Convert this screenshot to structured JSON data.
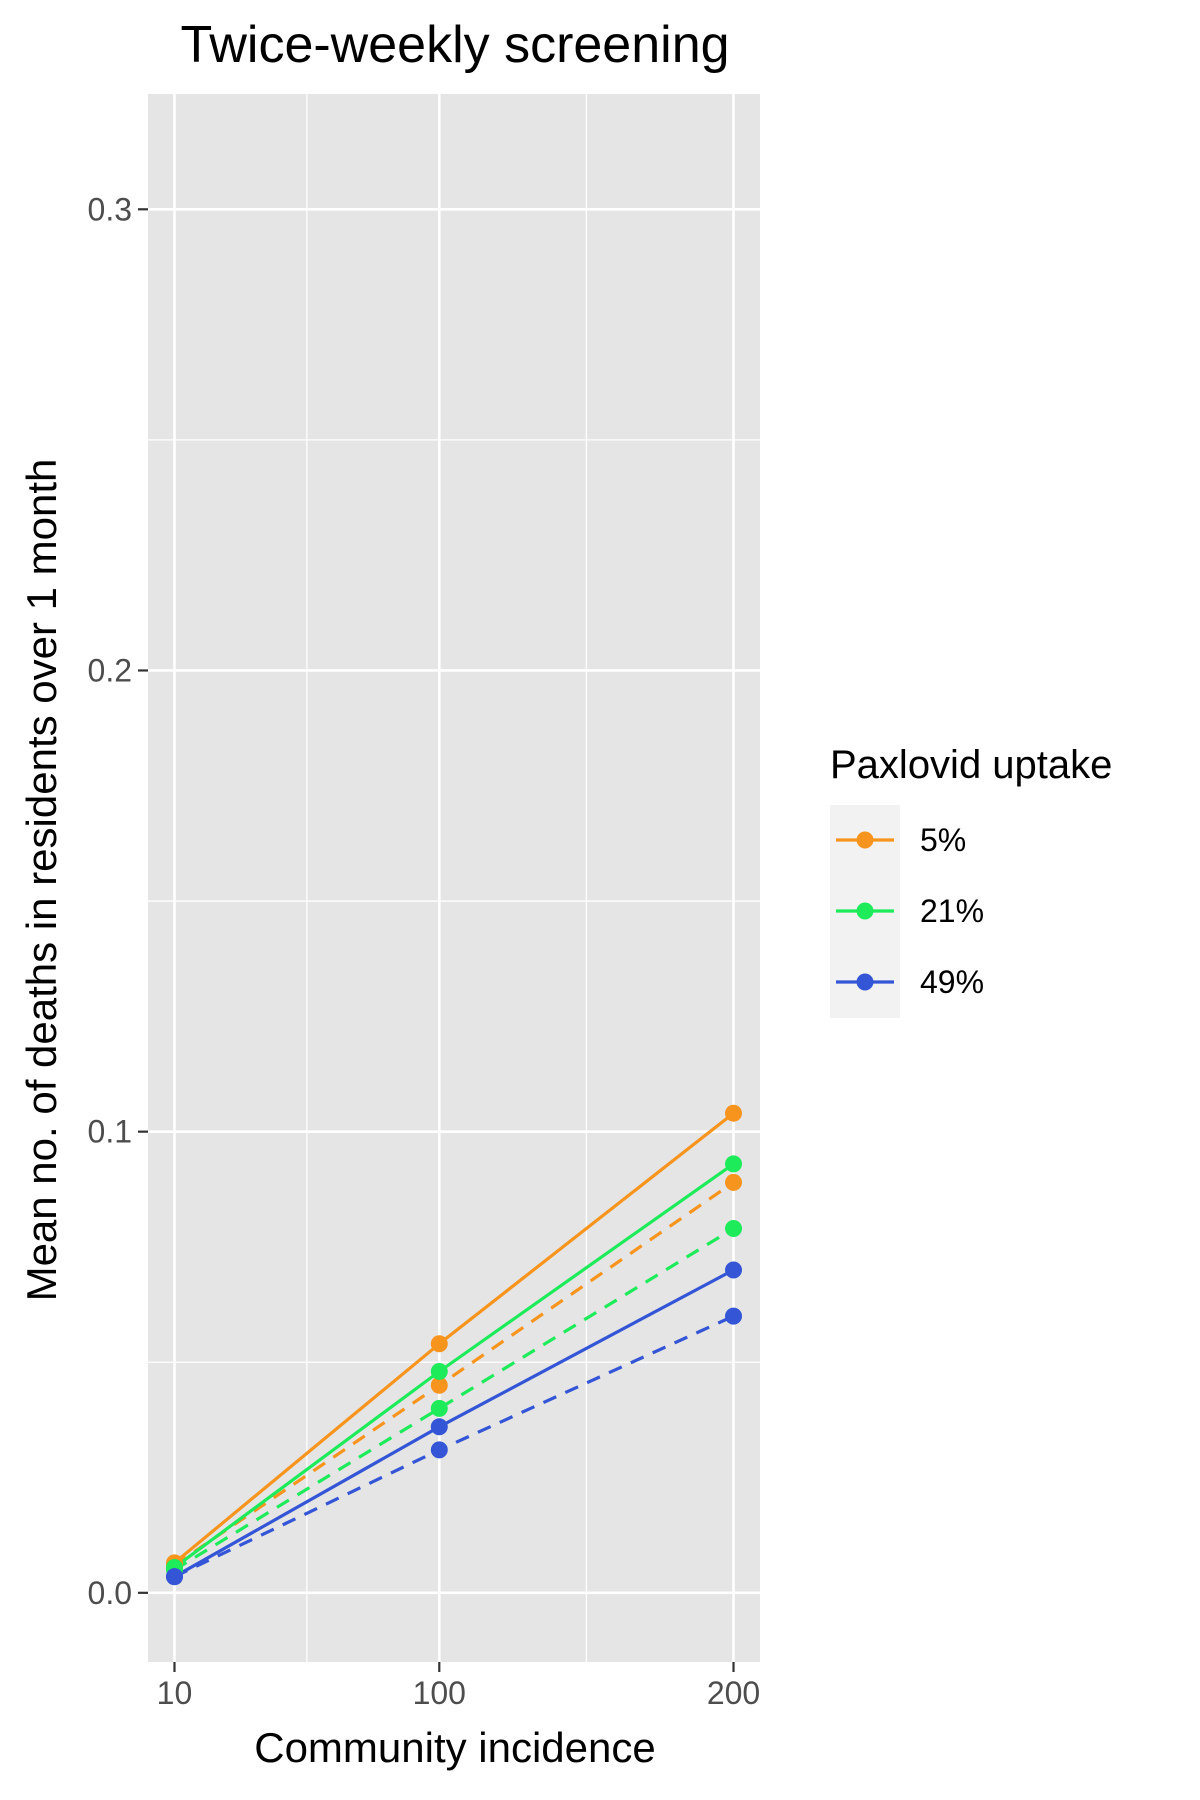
{
  "chart_data": {
    "type": "line",
    "title": "Twice-weekly screening",
    "xlabel": "Community incidence",
    "ylabel": "Mean no. of deaths in residents over 1 month",
    "x": [
      10,
      100,
      200
    ],
    "x_tick_labels": [
      "10",
      "100",
      "200"
    ],
    "y_ticks": [
      0.0,
      0.1,
      0.2,
      0.3
    ],
    "y_tick_labels": [
      "0.0",
      "0.1",
      "0.2",
      "0.3"
    ],
    "ylim": [
      -0.015,
      0.325
    ],
    "xlim": [
      1,
      209
    ],
    "grid": true,
    "legend": {
      "title": "Paxlovid uptake",
      "position": "right"
    },
    "series": [
      {
        "name": "5%",
        "color": "#F7941D",
        "linestyle": "solid",
        "values": [
          0.0065,
          0.054,
          0.104
        ]
      },
      {
        "name": "5%",
        "color": "#F7941D",
        "linestyle": "dashed",
        "values": [
          0.006,
          0.045,
          0.089
        ]
      },
      {
        "name": "21%",
        "color": "#1EEB5A",
        "linestyle": "solid",
        "values": [
          0.0055,
          0.048,
          0.093
        ]
      },
      {
        "name": "21%",
        "color": "#1EEB5A",
        "linestyle": "dashed",
        "values": [
          0.005,
          0.04,
          0.079
        ]
      },
      {
        "name": "49%",
        "color": "#3355D6",
        "linestyle": "solid",
        "values": [
          0.0035,
          0.036,
          0.07
        ]
      },
      {
        "name": "49%",
        "color": "#3355D6",
        "linestyle": "dashed",
        "values": [
          0.0035,
          0.031,
          0.06
        ]
      }
    ],
    "legend_entries": [
      {
        "label": "5%",
        "color": "#F7941D"
      },
      {
        "label": "21%",
        "color": "#1EEB5A"
      },
      {
        "label": "49%",
        "color": "#3355D6"
      }
    ]
  }
}
